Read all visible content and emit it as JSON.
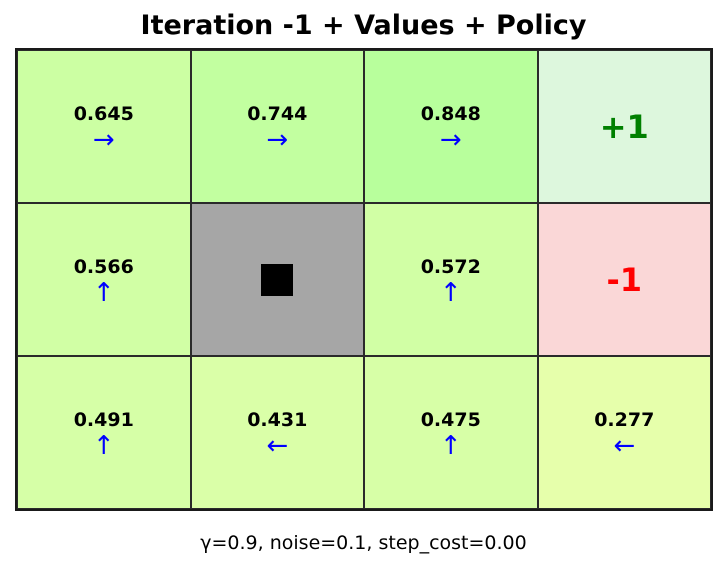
{
  "title": "Iteration -1 + Values + Policy",
  "footer": "γ=0.9, noise=0.1, step_cost=0.00",
  "grid": {
    "rows": 3,
    "cols": 4,
    "cells": [
      {
        "kind": "value",
        "value": "0.645",
        "arrow": "→",
        "arrow_name": "right-arrow-icon",
        "color": "#ccffa3"
      },
      {
        "kind": "value",
        "value": "0.744",
        "arrow": "→",
        "arrow_name": "right-arrow-icon",
        "color": "#c2ffa0"
      },
      {
        "kind": "value",
        "value": "0.848",
        "arrow": "→",
        "arrow_name": "right-arrow-icon",
        "color": "#b8ff9c"
      },
      {
        "kind": "terminal",
        "label": "+1",
        "text_color": "#008000",
        "color": "#ddf7dd"
      },
      {
        "kind": "value",
        "value": "0.566",
        "arrow": "↑",
        "arrow_name": "up-arrow-icon",
        "color": "#d1ffa5"
      },
      {
        "kind": "wall",
        "symbol": "■",
        "color": "#a6a6a6"
      },
      {
        "kind": "value",
        "value": "0.572",
        "arrow": "↑",
        "arrow_name": "up-arrow-icon",
        "color": "#d1ffa5"
      },
      {
        "kind": "terminal",
        "label": "-1",
        "text_color": "#ff0000",
        "color": "#fad7d7"
      },
      {
        "kind": "value",
        "value": "0.491",
        "arrow": "↑",
        "arrow_name": "up-arrow-icon",
        "color": "#d6ffa7"
      },
      {
        "kind": "value",
        "value": "0.431",
        "arrow": "←",
        "arrow_name": "left-arrow-icon",
        "color": "#daffa8"
      },
      {
        "kind": "value",
        "value": "0.475",
        "arrow": "↑",
        "arrow_name": "up-arrow-icon",
        "color": "#d7ffa7"
      },
      {
        "kind": "value",
        "value": "0.277",
        "arrow": "←",
        "arrow_name": "left-arrow-icon",
        "color": "#e6ffab"
      }
    ]
  }
}
